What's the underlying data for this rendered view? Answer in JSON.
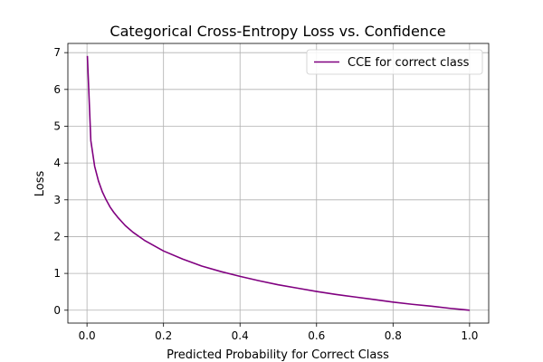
{
  "chart_data": {
    "type": "line",
    "title": "Categorical Cross-Entropy Loss vs. Confidence",
    "xlabel": "Predicted Probability for Correct Class",
    "ylabel": "Loss",
    "xlim": [
      -0.05,
      1.05
    ],
    "ylim": [
      -0.35,
      7.25
    ],
    "xticks": [
      0.0,
      0.2,
      0.4,
      0.6,
      0.8,
      1.0
    ],
    "xtick_labels": [
      "0.0",
      "0.2",
      "0.4",
      "0.6",
      "0.8",
      "1.0"
    ],
    "yticks": [
      0,
      1,
      2,
      3,
      4,
      5,
      6,
      7
    ],
    "ytick_labels": [
      "0",
      "1",
      "2",
      "3",
      "4",
      "5",
      "6",
      "7"
    ],
    "grid": true,
    "legend_position": "top-right",
    "series": [
      {
        "name": "CCE for correct class",
        "color": "#800080",
        "x": [
          0.001,
          0.01,
          0.02,
          0.03,
          0.04,
          0.05,
          0.06,
          0.07,
          0.08,
          0.1,
          0.12,
          0.15,
          0.2,
          0.25,
          0.3,
          0.35,
          0.4,
          0.45,
          0.5,
          0.55,
          0.6,
          0.65,
          0.7,
          0.75,
          0.8,
          0.85,
          0.9,
          0.95,
          1.0
        ],
        "y": [
          6.91,
          4.61,
          3.91,
          3.51,
          3.22,
          3.0,
          2.81,
          2.66,
          2.53,
          2.3,
          2.12,
          1.9,
          1.61,
          1.39,
          1.2,
          1.05,
          0.92,
          0.8,
          0.69,
          0.6,
          0.51,
          0.43,
          0.36,
          0.29,
          0.22,
          0.16,
          0.11,
          0.05,
          0.0
        ]
      }
    ]
  }
}
